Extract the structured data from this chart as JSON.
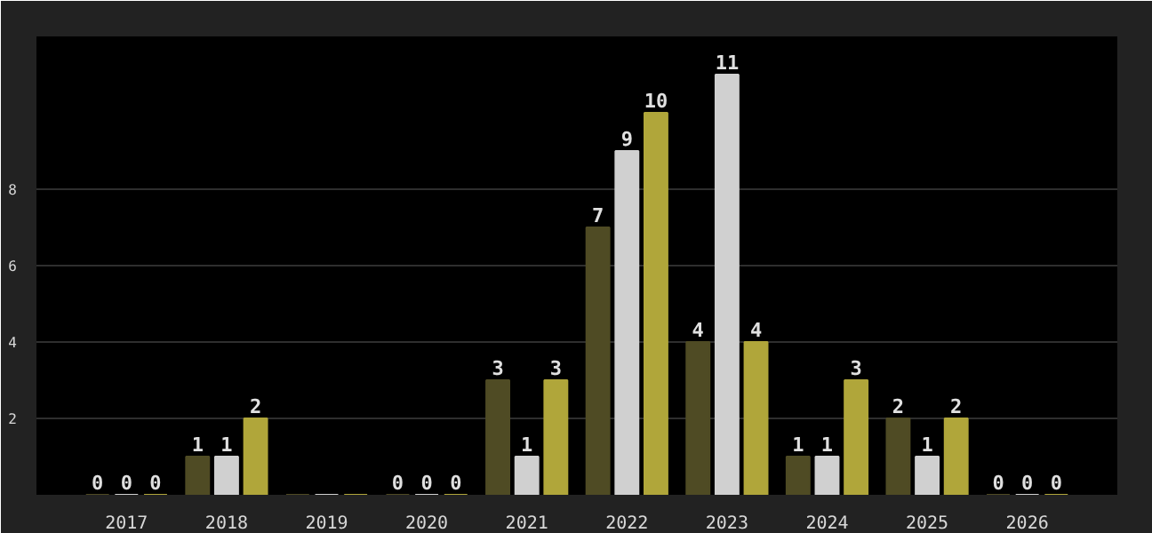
{
  "chart_data": {
    "type": "bar",
    "categories": [
      "2017",
      "2018",
      "2019",
      "2020",
      "2021",
      "2022",
      "2023",
      "2024",
      "2025",
      "2026"
    ],
    "series": [
      {
        "color": "#4f4b24",
        "values": [
          0,
          1,
          0,
          0,
          3,
          7,
          4,
          1,
          2,
          0
        ],
        "value_labels": [
          "0",
          "1",
          null,
          "0",
          "3",
          "7",
          "4",
          "1",
          "2",
          "0"
        ]
      },
      {
        "color": "#d0d0d0",
        "values": [
          0,
          1,
          0,
          0,
          1,
          9,
          11,
          1,
          1,
          0
        ],
        "value_labels": [
          "0",
          "1",
          null,
          "0",
          "1",
          "9",
          "11",
          "1",
          "1",
          "0"
        ]
      },
      {
        "color": "#b0a63a",
        "values": [
          0,
          2,
          0,
          0,
          3,
          10,
          4,
          3,
          2,
          0
        ],
        "value_labels": [
          "0",
          "2",
          null,
          "0",
          "3",
          "10",
          "4",
          "3",
          "2",
          "0"
        ]
      }
    ],
    "ylim": [
      0,
      12
    ],
    "yticks": [
      2,
      4,
      6,
      8
    ],
    "grid": "y"
  }
}
